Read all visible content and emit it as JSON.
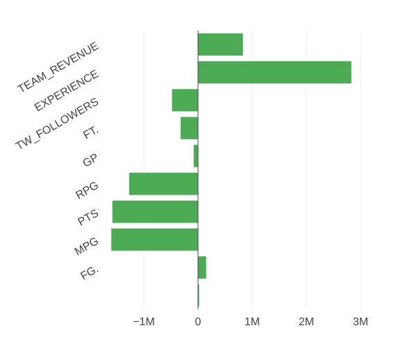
{
  "chart_data": {
    "type": "bar",
    "orientation": "horizontal",
    "categories": [
      "",
      "FG.",
      "MPG",
      "PTS",
      "RPG",
      "GP",
      "FT.",
      "TW_FOLLOWERS",
      "EXPERIENCE",
      "TEAM_REVENUE"
    ],
    "values": [
      20000,
      150000,
      -1600000,
      -1580000,
      -1270000,
      -80000,
      -320000,
      -480000,
      2830000,
      830000
    ],
    "x_ticks": [
      -1000000,
      0,
      1000000,
      2000000,
      3000000
    ],
    "x_tick_labels": [
      "−1M",
      "0",
      "1M",
      "2M",
      "3M"
    ],
    "xlim": [
      -1800000,
      3150000
    ],
    "grid": "vertical",
    "colors": {
      "bar": "#4caa55",
      "grid": "#ebebeb",
      "zero_line": "#444444"
    }
  }
}
